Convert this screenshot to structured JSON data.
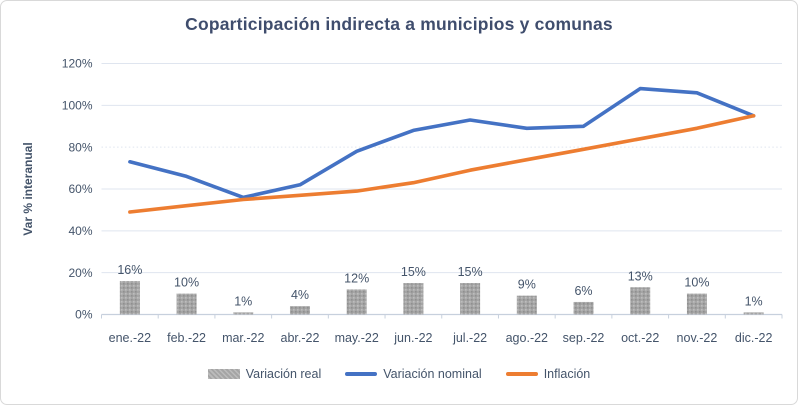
{
  "chart": {
    "title": "Coparticipación indirecta a municipios y comunas"
  },
  "chart_data": {
    "type": "combo",
    "title": "Coparticipación indirecta a municipios y comunas",
    "ylabel": "Var % interanual",
    "xlabel": "",
    "ylim": [
      0,
      120
    ],
    "ytick_step": 20,
    "yticks": [
      "0%",
      "20%",
      "40%",
      "60%",
      "80%",
      "100%",
      "120%"
    ],
    "grid": true,
    "legend_position": "bottom",
    "categories": [
      "ene.-22",
      "feb.-22",
      "mar.-22",
      "abr.-22",
      "may.-22",
      "jun.-22",
      "jul.-22",
      "ago.-22",
      "sep.-22",
      "oct.-22",
      "nov.-22",
      "dic.-22"
    ],
    "series": [
      {
        "name": "Variación real",
        "type": "bar",
        "color": "#a5a5a5",
        "values": [
          16,
          10,
          1,
          4,
          12,
          15,
          15,
          9,
          6,
          13,
          10,
          1
        ],
        "data_labels": [
          "16%",
          "10%",
          "1%",
          "4%",
          "12%",
          "15%",
          "15%",
          "9%",
          "6%",
          "13%",
          "10%",
          "1%"
        ]
      },
      {
        "name": "Variación nominal",
        "type": "line",
        "color": "#4472c4",
        "values": [
          73,
          66,
          56,
          62,
          78,
          88,
          93,
          89,
          90,
          108,
          106,
          95
        ]
      },
      {
        "name": "Inflación",
        "type": "line",
        "color": "#ed7d31",
        "values": [
          49,
          52,
          55,
          57,
          59,
          63,
          69,
          74,
          79,
          84,
          89,
          95
        ]
      }
    ]
  }
}
